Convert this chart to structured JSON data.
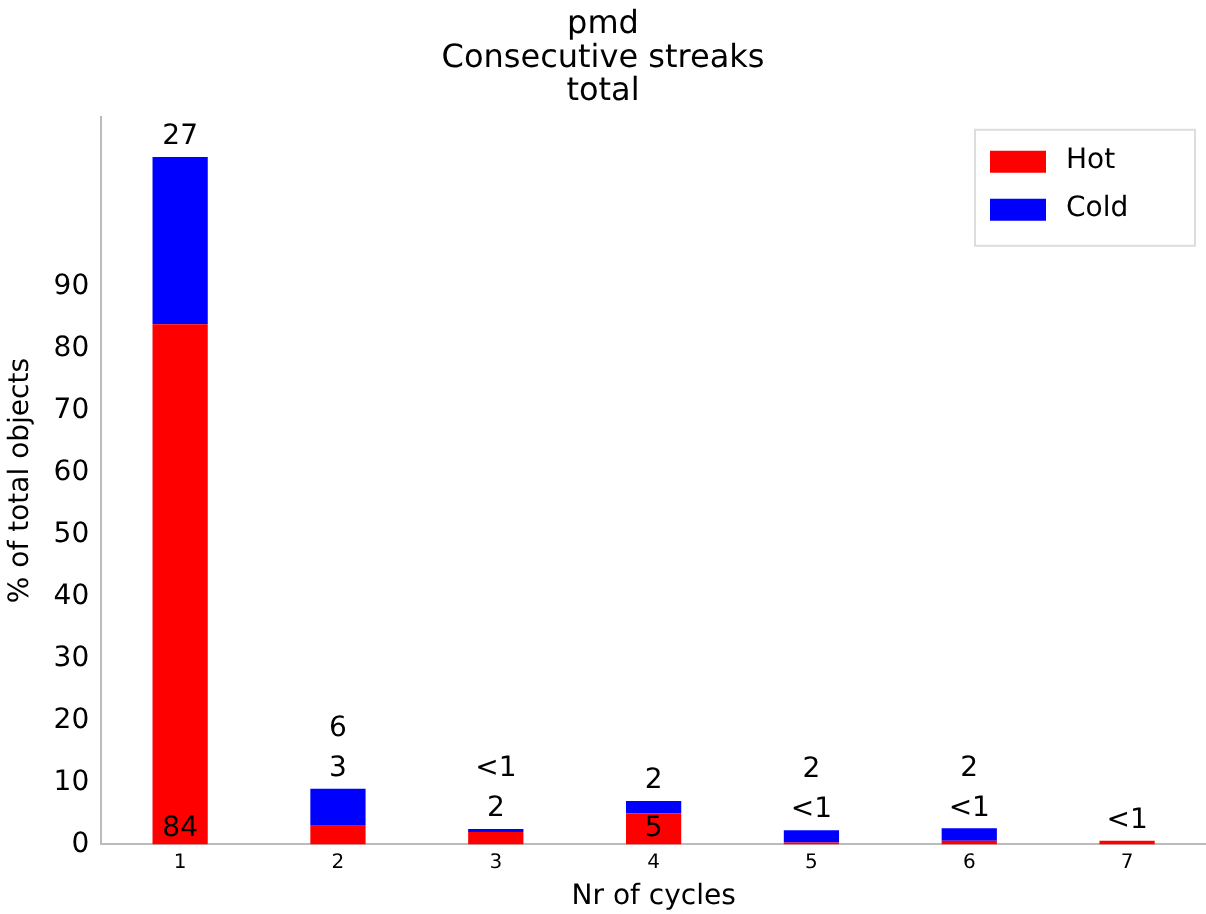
{
  "chart_data": {
    "type": "bar",
    "title": "pmd\nConsecutive streaks\ntotal",
    "xlabel": "Nr of cycles",
    "ylabel": "% of total objects",
    "categories": [
      "1",
      "2",
      "3",
      "4",
      "5",
      "6",
      "7"
    ],
    "stacked": true,
    "series": [
      {
        "name": "Hot",
        "color": "#ff0000",
        "values": [
          84,
          3,
          2,
          5,
          0.3,
          0.6,
          0.6
        ],
        "value_labels": [
          "84",
          "3",
          "2",
          "5",
          "<1",
          "<1",
          "<1"
        ]
      },
      {
        "name": "Cold",
        "color": "#0000ff",
        "values": [
          27,
          6,
          0.5,
          2,
          2,
          2,
          null
        ],
        "value_labels": [
          "27",
          "6",
          "<1",
          "2",
          "2",
          "2",
          null
        ]
      }
    ],
    "ylim": [
      0,
      117.5
    ],
    "yticks": [
      0,
      10,
      20,
      30,
      40,
      50,
      60,
      70,
      80,
      90
    ],
    "grid": false,
    "legend": "top right"
  }
}
